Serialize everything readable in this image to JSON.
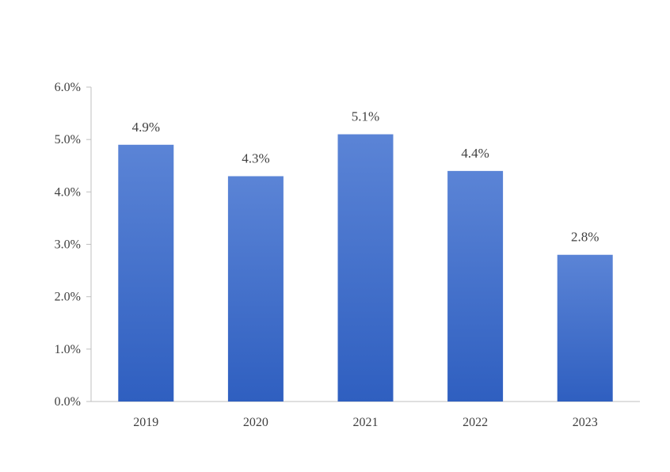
{
  "chart_data": {
    "type": "bar",
    "title": "",
    "xlabel": "",
    "ylabel": "",
    "categories": [
      "2019",
      "2020",
      "2021",
      "2022",
      "2023"
    ],
    "values": [
      4.9,
      4.3,
      5.1,
      4.4,
      2.8
    ],
    "data_labels": [
      "4.9%",
      "4.3%",
      "5.1%",
      "4.4%",
      "2.8%"
    ],
    "ylim": [
      0,
      6
    ],
    "yticks": [
      0,
      1,
      2,
      3,
      4,
      5,
      6
    ],
    "ytick_labels": [
      "0.0%",
      "1.0%",
      "2.0%",
      "3.0%",
      "4.0%",
      "5.0%",
      "6.0%"
    ],
    "grid": false,
    "legend": "none",
    "colors": {
      "bar_top": "#5b84d6",
      "bar_bottom": "#2f5fc0",
      "axis": "#bfbfbf",
      "text": "#404040"
    }
  }
}
